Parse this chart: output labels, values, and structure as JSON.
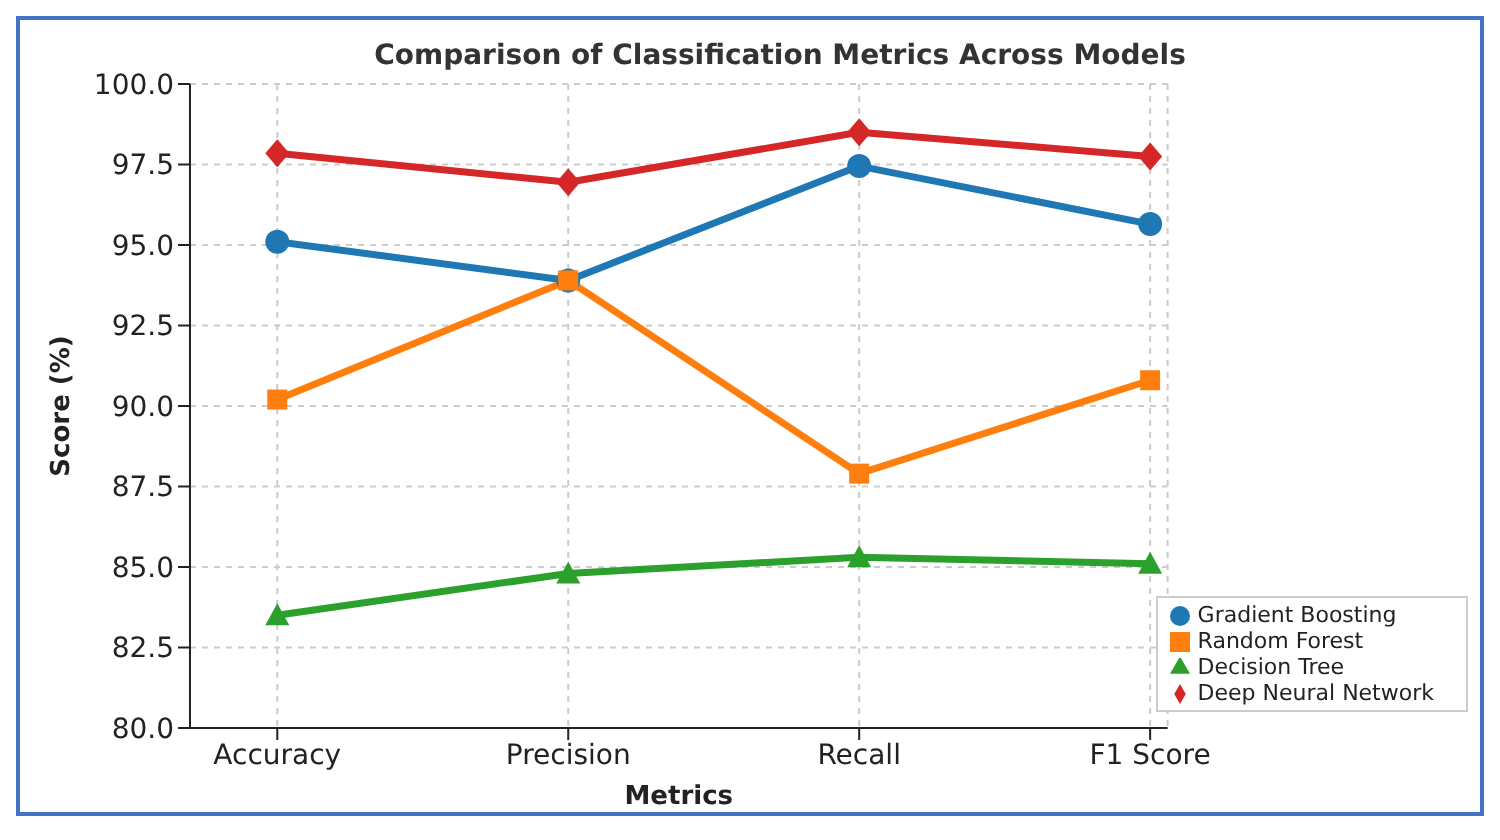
{
  "chart_data": {
    "type": "line",
    "title": "Comparison of Classification Metrics Across Models",
    "xlabel": "Metrics",
    "ylabel": "Score (%)",
    "categories": [
      "Accuracy",
      "Precision",
      "Recall",
      "F1 Score"
    ],
    "series": [
      {
        "name": "Gradient Boosting",
        "color": "#1f77b4",
        "marker": "circle",
        "values": [
          95.1,
          93.9,
          97.45,
          95.65
        ]
      },
      {
        "name": "Random Forest",
        "color": "#ff7f0e",
        "marker": "square",
        "values": [
          90.2,
          93.9,
          87.9,
          90.8
        ]
      },
      {
        "name": "Decision Tree",
        "color": "#2ca02c",
        "marker": "triangle",
        "values": [
          83.5,
          84.8,
          85.3,
          85.1
        ]
      },
      {
        "name": "Deep Neural Network",
        "color": "#d62728",
        "marker": "diamond",
        "values": [
          97.85,
          96.95,
          98.5,
          97.75
        ]
      }
    ],
    "ylim": [
      80,
      100
    ],
    "yticks": [
      {
        "value": 80,
        "label": "80.0"
      },
      {
        "value": 82.5,
        "label": "82.5"
      },
      {
        "value": 85,
        "label": "85.0"
      },
      {
        "value": 87.5,
        "label": "87.5"
      },
      {
        "value": 90,
        "label": "90.0"
      },
      {
        "value": 92.5,
        "label": "92.5"
      },
      {
        "value": 95,
        "label": "95.0"
      },
      {
        "value": 97.5,
        "label": "97.5"
      },
      {
        "value": 100,
        "label": "100.0"
      }
    ],
    "grid": true,
    "legend": "bottom right",
    "line_style": "solid"
  }
}
